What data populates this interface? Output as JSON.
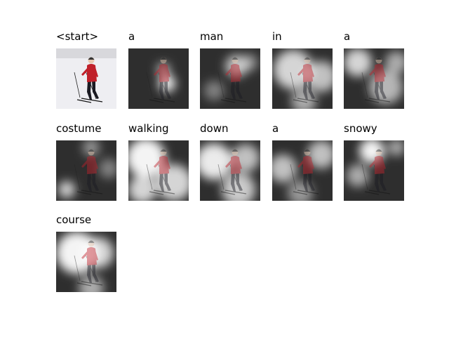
{
  "panels": [
    {
      "word": "<start>"
    },
    {
      "word": "a"
    },
    {
      "word": "man"
    },
    {
      "word": "in"
    },
    {
      "word": "a"
    },
    {
      "word": "costume"
    },
    {
      "word": "walking"
    },
    {
      "word": "down"
    },
    {
      "word": "a"
    },
    {
      "word": "snowy"
    },
    {
      "word": "course"
    }
  ]
}
